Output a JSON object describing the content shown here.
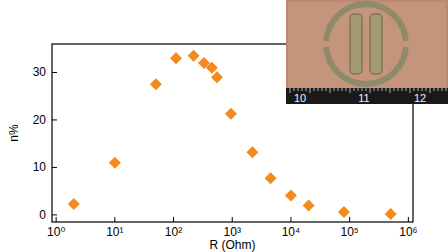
{
  "chart_data": {
    "type": "scatter",
    "x_label": "R (Ohm)",
    "y_label": "n%",
    "x": [
      2,
      10,
      50,
      110,
      220,
      330,
      450,
      550,
      950,
      2200,
      4500,
      10000,
      20000,
      80000,
      500000
    ],
    "values": [
      2.3,
      11,
      27.5,
      33,
      33.5,
      32,
      31,
      29,
      21.3,
      13.2,
      7.7,
      4.1,
      2,
      0.6,
      0.2
    ],
    "color": "#f28a1e",
    "marker": "diamond",
    "log": "x",
    "xlim": [
      0.85,
      1200000
    ],
    "xticks": [
      {
        "value": 1,
        "label": "10⁰"
      },
      {
        "value": 10,
        "label": "10¹"
      },
      {
        "value": 100,
        "label": "10²"
      },
      {
        "value": 1000,
        "label": "10³"
      },
      {
        "value": 10000,
        "label": "10⁴"
      },
      {
        "value": 100000,
        "label": "10⁵"
      },
      {
        "value": 1000000,
        "label": "10⁶"
      }
    ],
    "ylim": [
      -1.5,
      36
    ],
    "yticks": [
      0,
      10,
      20,
      30
    ],
    "annotations": [
      "10",
      "11",
      "12"
    ]
  }
}
